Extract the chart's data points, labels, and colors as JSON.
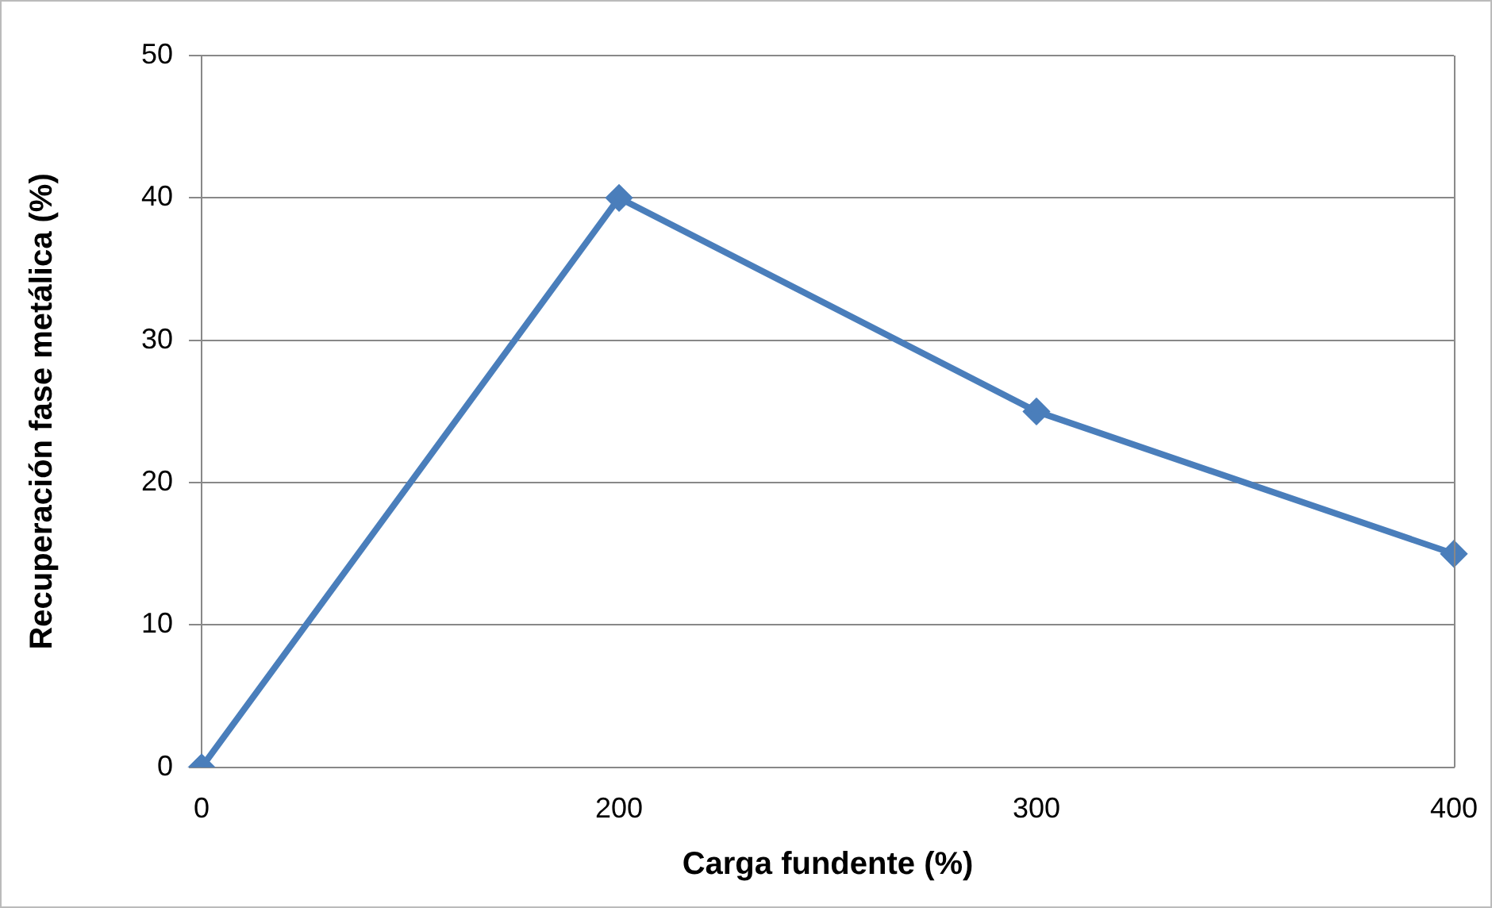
{
  "chart_data": {
    "type": "line",
    "xlabel": "Carga fundente (%)",
    "ylabel": "Recuperación fase metálica (%)",
    "categories": [
      "0",
      "200",
      "300",
      "400"
    ],
    "series": [
      {
        "color": "#4a7ebb",
        "values": [
          0,
          40,
          25,
          15
        ]
      }
    ],
    "ylim": [
      0,
      50
    ],
    "yticks": [
      0,
      10,
      20,
      30,
      40,
      50
    ],
    "grid": "y",
    "legend": false,
    "marker": "diamond",
    "line_style": "solid"
  }
}
